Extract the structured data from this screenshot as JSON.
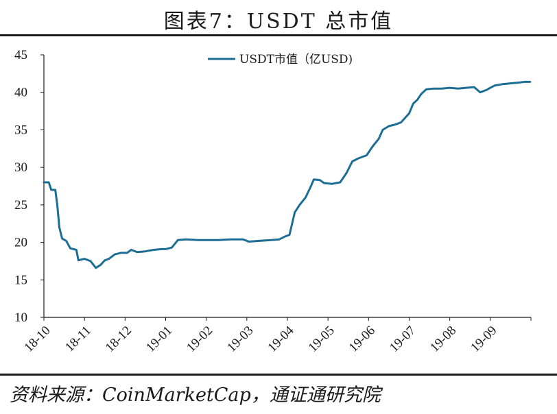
{
  "title": "图表7：USDT 总市值",
  "source": "资料来源：CoinMarketCap，通证通研究院",
  "colors": {
    "series": "#1c6e95",
    "axis": "#1a1a1a"
  },
  "chart_data": {
    "type": "line",
    "title": "图表7：USDT 总市值",
    "xlabel": "",
    "ylabel": "",
    "ylim": [
      10,
      45
    ],
    "yticks": [
      10,
      15,
      20,
      25,
      30,
      35,
      40,
      45
    ],
    "xlim": [
      0,
      12
    ],
    "xticks": [
      {
        "label": "18-10",
        "x": 0
      },
      {
        "label": "18-11",
        "x": 1
      },
      {
        "label": "18-12",
        "x": 2
      },
      {
        "label": "19-01",
        "x": 3
      },
      {
        "label": "19-02",
        "x": 4
      },
      {
        "label": "19-03",
        "x": 5
      },
      {
        "label": "19-04",
        "x": 6
      },
      {
        "label": "19-05",
        "x": 7
      },
      {
        "label": "19-06",
        "x": 8
      },
      {
        "label": "19-07",
        "x": 9
      },
      {
        "label": "19-08",
        "x": 10
      },
      {
        "label": "19-09",
        "x": 11
      }
    ],
    "grid": false,
    "legend": "top-center",
    "series": [
      {
        "name": "USDT市值（亿USD)",
        "points": [
          [
            0.0,
            28.0
          ],
          [
            0.12,
            28.0
          ],
          [
            0.18,
            27.0
          ],
          [
            0.28,
            27.0
          ],
          [
            0.33,
            25.0
          ],
          [
            0.38,
            22.0
          ],
          [
            0.45,
            20.5
          ],
          [
            0.55,
            20.2
          ],
          [
            0.65,
            19.2
          ],
          [
            0.8,
            19.0
          ],
          [
            0.85,
            17.6
          ],
          [
            1.0,
            17.8
          ],
          [
            1.15,
            17.5
          ],
          [
            1.28,
            16.6
          ],
          [
            1.4,
            17.0
          ],
          [
            1.5,
            17.6
          ],
          [
            1.6,
            17.8
          ],
          [
            1.75,
            18.4
          ],
          [
            1.9,
            18.6
          ],
          [
            2.05,
            18.6
          ],
          [
            2.15,
            19.0
          ],
          [
            2.3,
            18.7
          ],
          [
            2.5,
            18.8
          ],
          [
            2.7,
            19.0
          ],
          [
            2.9,
            19.1
          ],
          [
            3.0,
            19.1
          ],
          [
            3.15,
            19.3
          ],
          [
            3.3,
            20.3
          ],
          [
            3.5,
            20.4
          ],
          [
            3.8,
            20.3
          ],
          [
            4.0,
            20.3
          ],
          [
            4.3,
            20.3
          ],
          [
            4.6,
            20.4
          ],
          [
            4.9,
            20.4
          ],
          [
            5.05,
            20.1
          ],
          [
            5.3,
            20.2
          ],
          [
            5.6,
            20.3
          ],
          [
            5.8,
            20.4
          ],
          [
            5.95,
            20.8
          ],
          [
            6.05,
            21.0
          ],
          [
            6.18,
            24.0
          ],
          [
            6.3,
            25.0
          ],
          [
            6.45,
            26.0
          ],
          [
            6.58,
            27.5
          ],
          [
            6.65,
            28.4
          ],
          [
            6.8,
            28.3
          ],
          [
            6.9,
            27.9
          ],
          [
            7.1,
            27.8
          ],
          [
            7.3,
            28.0
          ],
          [
            7.45,
            29.2
          ],
          [
            7.6,
            30.8
          ],
          [
            7.75,
            31.2
          ],
          [
            7.95,
            31.6
          ],
          [
            8.1,
            32.8
          ],
          [
            8.25,
            33.8
          ],
          [
            8.35,
            35.0
          ],
          [
            8.5,
            35.5
          ],
          [
            8.65,
            35.7
          ],
          [
            8.8,
            36.0
          ],
          [
            9.0,
            37.2
          ],
          [
            9.1,
            38.5
          ],
          [
            9.2,
            39.0
          ],
          [
            9.3,
            39.8
          ],
          [
            9.42,
            40.4
          ],
          [
            9.6,
            40.5
          ],
          [
            9.8,
            40.5
          ],
          [
            10.0,
            40.6
          ],
          [
            10.2,
            40.5
          ],
          [
            10.4,
            40.6
          ],
          [
            10.6,
            40.7
          ],
          [
            10.75,
            40.0
          ],
          [
            10.9,
            40.3
          ],
          [
            11.0,
            40.6
          ],
          [
            11.1,
            40.9
          ],
          [
            11.3,
            41.1
          ],
          [
            11.5,
            41.2
          ],
          [
            11.7,
            41.3
          ],
          [
            11.85,
            41.4
          ],
          [
            11.98,
            41.4
          ]
        ]
      }
    ]
  }
}
